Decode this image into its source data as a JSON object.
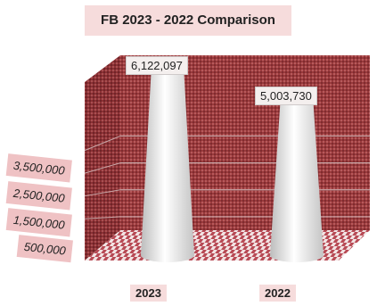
{
  "chart_data": {
    "type": "bar",
    "title": "FB 2023 - 2022 Comparison",
    "categories": [
      "2023",
      "2022"
    ],
    "values": [
      6122097,
      5003730
    ],
    "data_labels": [
      "6,122,097",
      "5,003,730"
    ],
    "ytick_labels": [
      "3,500,000",
      "2,500,000",
      "1,500,000",
      "500,000"
    ],
    "yticks": [
      3500000,
      2500000,
      1500000,
      500000
    ],
    "ylim": [
      0,
      6500000
    ],
    "xlabel": "",
    "ylabel": "",
    "grid": true,
    "legend": "none",
    "colors": {
      "wall": "#9a3a3c",
      "floor_a": "#b84a55",
      "floor_b": "#f2e4e4",
      "cone_light": "#ffffff",
      "cone_shade": "#bcbcbc",
      "gridline": "#c9a7a8"
    }
  }
}
